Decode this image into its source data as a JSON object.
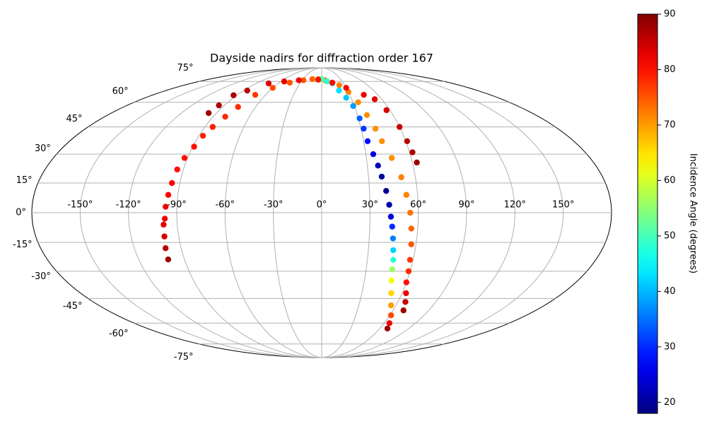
{
  "chart_data": {
    "type": "scatter",
    "projection": "mollweide",
    "title": "Dayside nadirs for diffraction order 167",
    "colorbar_label": "Incidence Angle (degrees)",
    "colormap": "jet",
    "grid": true,
    "xlim": [
      -180,
      180
    ],
    "ylim": [
      -90,
      90
    ],
    "clim": [
      18,
      90
    ],
    "xticks": [
      {
        "value": -150,
        "label": "-150°"
      },
      {
        "value": -120,
        "label": "-120°"
      },
      {
        "value": -90,
        "label": "-90°"
      },
      {
        "value": -60,
        "label": "-60°"
      },
      {
        "value": -30,
        "label": "-30°"
      },
      {
        "value": 0,
        "label": "0°"
      },
      {
        "value": 30,
        "label": "30°"
      },
      {
        "value": 60,
        "label": "60°"
      },
      {
        "value": 90,
        "label": "90°"
      },
      {
        "value": 120,
        "label": "120°"
      },
      {
        "value": 150,
        "label": "150°"
      }
    ],
    "yticks": [
      {
        "value": -75,
        "label": "-75°"
      },
      {
        "value": -60,
        "label": "-60°"
      },
      {
        "value": -45,
        "label": "-45°"
      },
      {
        "value": -30,
        "label": "-30°"
      },
      {
        "value": -15,
        "label": "-15°"
      },
      {
        "value": 0,
        "label": "0°"
      },
      {
        "value": 15,
        "label": "15°"
      },
      {
        "value": 30,
        "label": "30°"
      },
      {
        "value": 45,
        "label": "45°"
      },
      {
        "value": 60,
        "label": "60°"
      },
      {
        "value": 75,
        "label": "75°"
      }
    ],
    "cticks": [
      20,
      30,
      40,
      50,
      60,
      70,
      80,
      90
    ],
    "series": [
      {
        "x": [
          -100.7,
          -100,
          -99,
          -98.5,
          -97.5,
          -97,
          -96,
          -95,
          -94,
          -92,
          -89,
          -87,
          -84,
          -80,
          -76,
          -71,
          -60,
          -45,
          -28,
          -15
        ],
        "y": [
          -23.8,
          -18,
          -12,
          -6,
          -3,
          3,
          9,
          15,
          22,
          28,
          34,
          40,
          45,
          51,
          57,
          65,
          70,
          74,
          76,
          77
        ],
        "values": [
          88,
          86,
          84,
          83,
          82,
          82,
          81,
          81,
          80,
          80,
          80,
          79,
          79,
          78,
          78,
          77,
          76,
          75,
          75,
          74
        ]
      },
      {
        "x": [
          -5,
          5,
          15,
          23,
          30,
          35,
          38,
          41,
          43,
          47,
          51,
          53,
          55,
          56,
          57,
          58,
          59,
          60,
          63,
          66,
          68.8
        ],
        "y": [
          77,
          76,
          74,
          72,
          67,
          60,
          52,
          44,
          37,
          28,
          18,
          9,
          0,
          -8,
          -16,
          -24,
          -30,
          -36,
          -42,
          -47,
          -52
        ],
        "values": [
          73,
          72,
          72,
          72,
          72,
          71,
          71,
          71,
          71,
          71,
          72,
          72,
          73,
          74,
          75,
          77,
          78,
          80,
          82,
          85,
          88
        ]
      },
      {
        "x": [
          0,
          8,
          14.6,
          20,
          25,
          29,
          31,
          32,
          32.8,
          35,
          37,
          38.5,
          40.5,
          42,
          43,
          44,
          45,
          46,
          47,
          47.6,
          49,
          52,
          56,
          61,
          65,
          68
        ],
        "y": [
          77,
          75,
          73.4,
          68,
          63,
          57.6,
          50,
          44,
          37,
          30,
          24,
          18.3,
          11,
          4,
          -2,
          -7,
          -13,
          -19,
          -24,
          -29,
          -35,
          -42,
          -49,
          -55,
          -60,
          -63.6
        ],
        "values": [
          50,
          48,
          45,
          43,
          41,
          38,
          34,
          31,
          28,
          25,
          22,
          20,
          19,
          21,
          25,
          30,
          36,
          42,
          48,
          56,
          62,
          66,
          70,
          76,
          82,
          88
        ]
      },
      {
        "x": [
          -96.7,
          -95,
          -93.5,
          -86,
          -73,
          -55,
          -35,
          -5.5,
          15,
          30,
          45,
          53,
          57,
          60,
          61,
          62,
          63
        ],
        "y": [
          53.2,
          58,
          64.7,
          68,
          73.4,
          75,
          76,
          76.5,
          74,
          70,
          65,
          62,
          55,
          45,
          37,
          31,
          25.6
        ],
        "values": [
          88,
          87,
          87,
          86,
          84,
          83,
          82,
          80,
          80,
          81,
          82,
          83,
          84,
          85,
          86,
          87,
          88
        ]
      }
    ]
  }
}
